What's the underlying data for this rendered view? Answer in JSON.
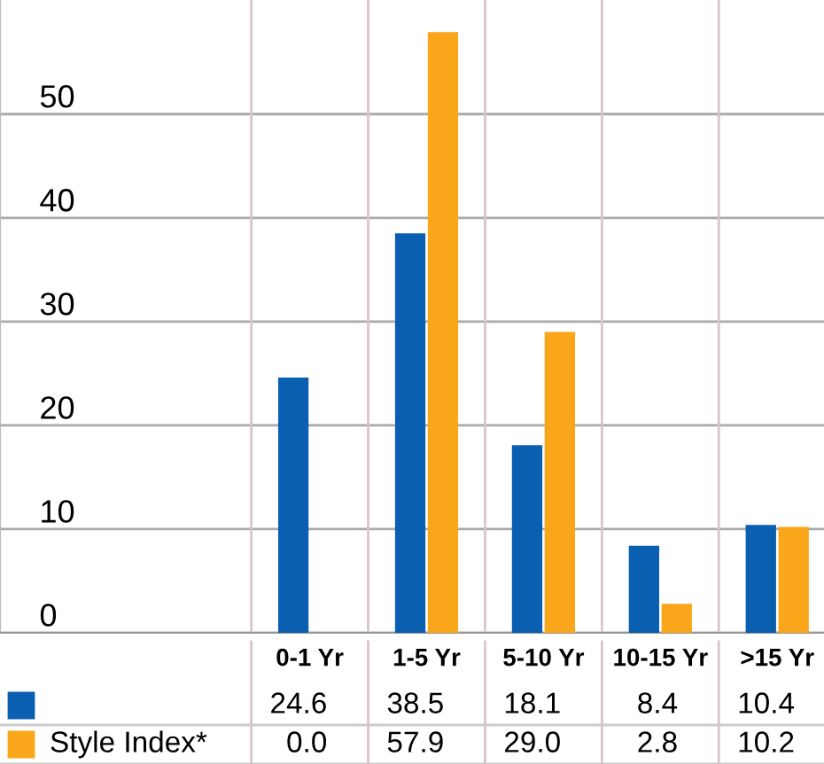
{
  "chart_data": {
    "type": "bar",
    "categories": [
      "0-1 Yr",
      "1-5 Yr",
      "5-10 Yr",
      "10-15 Yr",
      ">15 Yr"
    ],
    "series": [
      {
        "color": "#0a5fb0",
        "values": [
          24.6,
          38.5,
          18.1,
          8.4,
          10.4
        ],
        "value_labels": [
          "24.6",
          "38.5",
          "18.1",
          "8.4",
          "10.4"
        ]
      },
      {
        "name": "Style Index*",
        "color": "#f9a61a",
        "values": [
          0.0,
          57.9,
          29.0,
          2.8,
          10.2
        ],
        "value_labels": [
          "0.0",
          "57.9",
          "29.0",
          "2.8",
          "10.2"
        ]
      }
    ],
    "ylim": [
      0,
      61
    ],
    "yticks": [
      0,
      10,
      20,
      30,
      40,
      50
    ],
    "grid": true
  }
}
